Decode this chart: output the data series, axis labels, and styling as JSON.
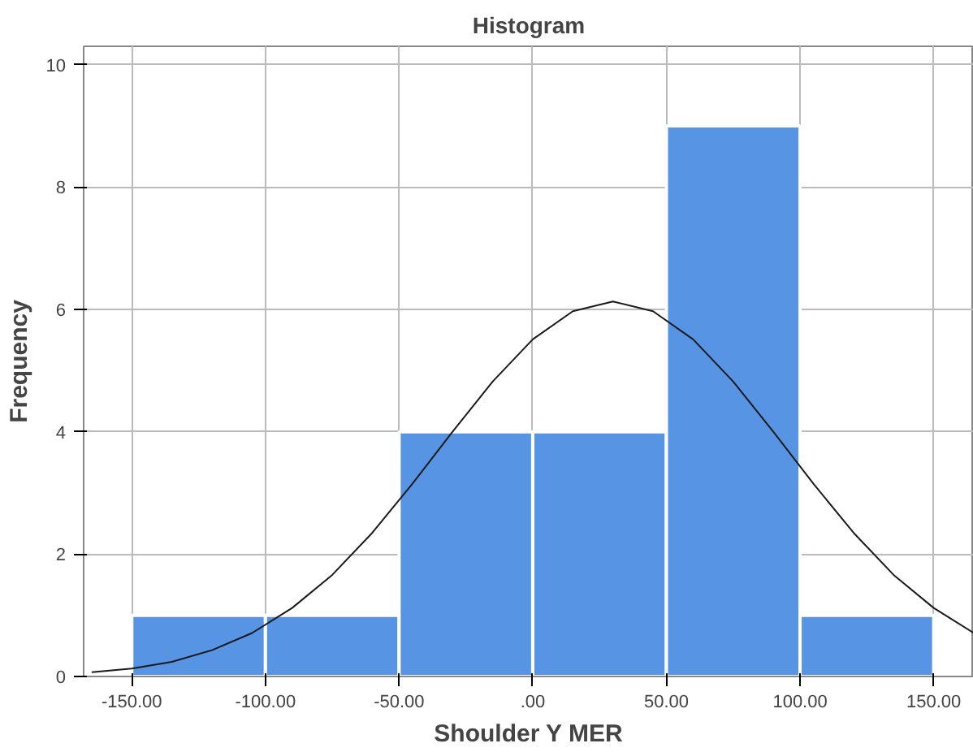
{
  "chart_data": {
    "type": "histogram",
    "title": "Histogram",
    "xlabel": "Shoulder Y MER",
    "ylabel": "Frequency",
    "bins": [
      -150,
      -100,
      -50,
      0,
      50,
      100,
      150
    ],
    "values": [
      1,
      1,
      4,
      4,
      9,
      1
    ],
    "color": "#5794e4",
    "series": [
      {
        "type": "line",
        "color": "#1a1a1a",
        "x": [
          -165,
          -150,
          -135,
          -120,
          -105,
          -90,
          -75,
          -60,
          -45,
          -30,
          -15,
          0,
          15,
          30,
          45,
          60,
          75,
          90,
          105,
          120,
          135,
          150,
          165
        ],
        "values": [
          0.07,
          0.13,
          0.24,
          0.43,
          0.71,
          1.12,
          1.66,
          2.35,
          3.15,
          4.0,
          4.82,
          5.51,
          5.97,
          6.13,
          5.97,
          5.51,
          4.82,
          4.0,
          3.15,
          2.35,
          1.66,
          1.12,
          0.71
        ]
      }
    ],
    "xlim": [
      -168,
      165
    ],
    "ylim": [
      0,
      10.3
    ],
    "xticks": [
      {
        "value": -150,
        "label": "-150.00"
      },
      {
        "value": -100,
        "label": "-100.00"
      },
      {
        "value": -50,
        "label": "-50.00"
      },
      {
        "value": 0,
        "label": ".00"
      },
      {
        "value": 50,
        "label": "50.00"
      },
      {
        "value": 100,
        "label": "100.00"
      },
      {
        "value": 150,
        "label": "150.00"
      }
    ],
    "yticks": [
      0,
      2,
      4,
      6,
      8,
      10
    ],
    "grid": true
  }
}
